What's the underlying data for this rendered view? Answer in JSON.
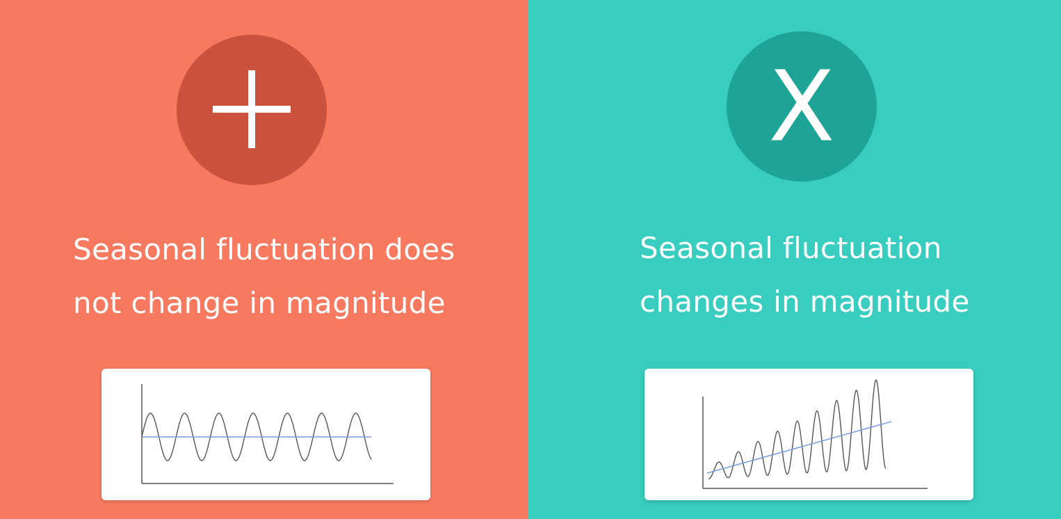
{
  "colors": {
    "left_background": "#F77A60",
    "left_badge": "#CB523C",
    "right_background": "#38CDBE",
    "right_badge": "#1EA497",
    "axis": "#555555",
    "wave": "#555555",
    "trend": "#7A9BE0"
  },
  "left": {
    "icon": "plus-icon",
    "caption_line1": "Seasonal fluctuation does",
    "caption_line2": "not change in magnitude"
  },
  "right": {
    "icon": "multiply-icon",
    "icon_glyph": "X",
    "caption_line1": "Seasonal fluctuation",
    "caption_line2": "changes in magnitude"
  },
  "chart_data": [
    {
      "type": "line",
      "series": [
        {
          "pattern": "seasonal",
          "cycles": 6.7,
          "level": 0,
          "trend_slope": 0,
          "amplitude_start": 1,
          "amplitude_end": 1
        },
        {
          "pattern": "trend",
          "level": 0,
          "trend_slope": 0
        }
      ],
      "grid": false
    },
    {
      "type": "line",
      "series": [
        {
          "pattern": "seasonal",
          "cycles": 9,
          "level": 0,
          "trend_slope": 1,
          "amplitude_start": 0.2,
          "amplitude_end": 1.6
        },
        {
          "pattern": "trend",
          "level": 0,
          "trend_slope": 1
        }
      ],
      "grid": false
    }
  ]
}
